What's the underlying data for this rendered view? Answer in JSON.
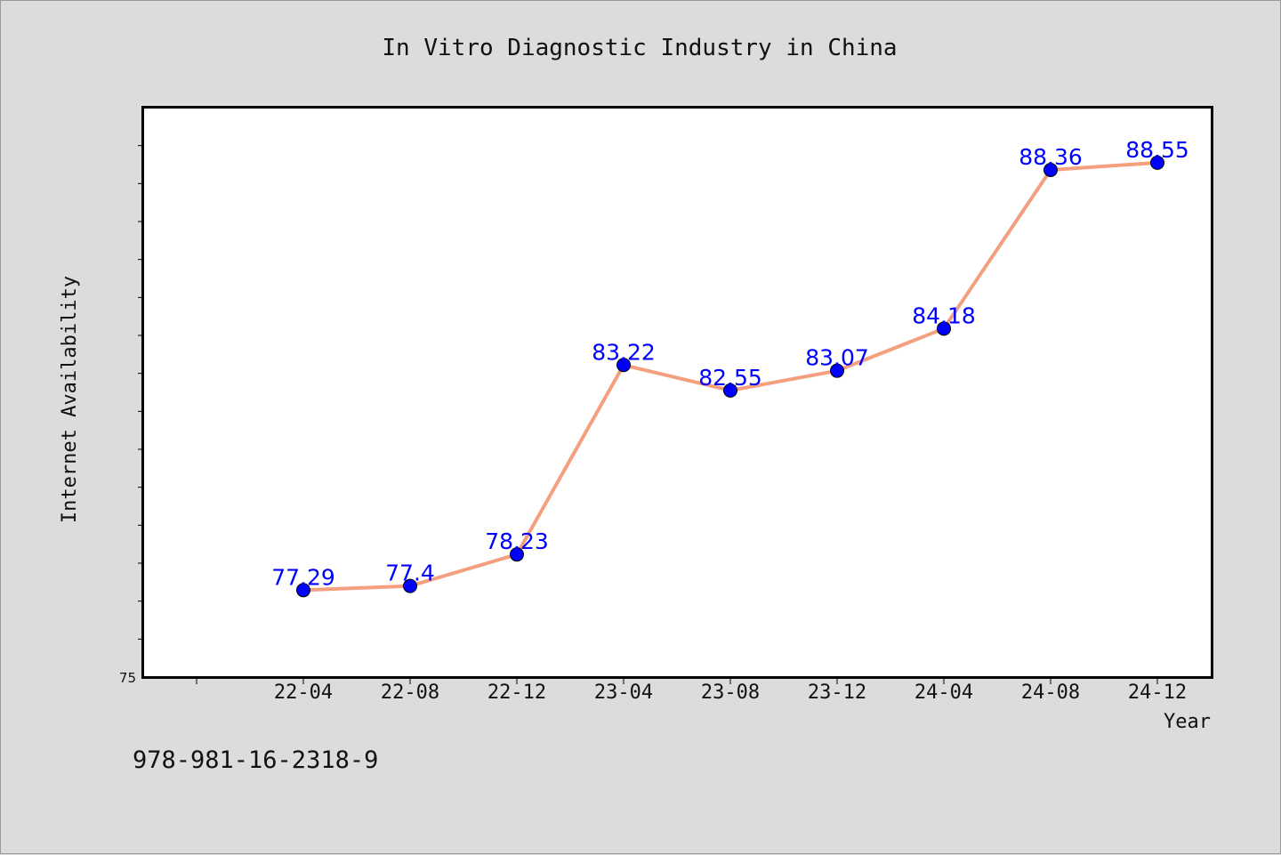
{
  "footer": {
    "isbn": "978-981-16-2318-9"
  },
  "chart_data": {
    "type": "line",
    "title": "In Vitro Diagnostic Industry in China",
    "xlabel": "Year",
    "ylabel": "Internet Availability",
    "categories": [
      "22-04",
      "22-08",
      "22-12",
      "23-04",
      "23-08",
      "23-12",
      "24-04",
      "24-08",
      "24-12"
    ],
    "series": [
      {
        "values": [
          77.29,
          77.4,
          78.23,
          83.22,
          82.55,
          83.07,
          84.18,
          88.36,
          88.55
        ],
        "line_color": "#f4a07e",
        "marker_color": "#0000ff"
      }
    ],
    "data_labels": [
      "77.29",
      "77.4",
      "78.23",
      "83.22",
      "82.55",
      "83.07",
      "84.18",
      "88.36",
      "88.55"
    ],
    "y_tick_labels": [
      "75"
    ],
    "ylim": [
      75,
      90
    ],
    "grid": false,
    "plot_background": "#ffffff",
    "page_background": "#dcdcdc"
  }
}
